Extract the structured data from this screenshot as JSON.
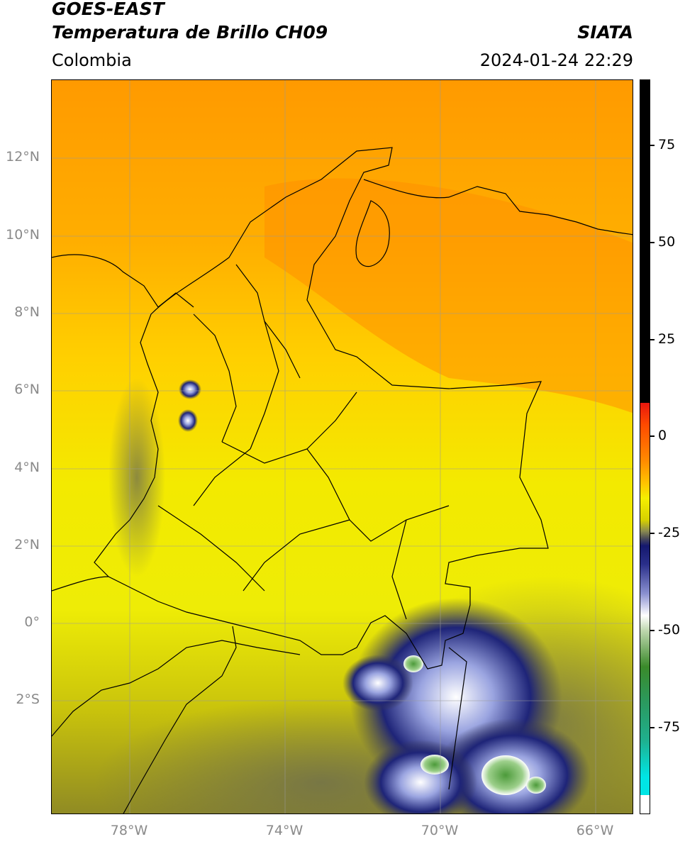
{
  "header": {
    "satellite": "GOES-EAST",
    "product": "Temperatura de Brillo CH09",
    "organization": "SIATA",
    "region": "Colombia",
    "datetime": "2024-01-24 22:29"
  },
  "map": {
    "lat_ticks": [
      "12°N",
      "10°N",
      "8°N",
      "6°N",
      "4°N",
      "2°N",
      "0°",
      "2°S"
    ],
    "lon_ticks": [
      "78°W",
      "74°W",
      "70°W",
      "66°W"
    ]
  },
  "colorbar": {
    "ticks": [
      "75",
      "50",
      "25",
      "0",
      "-25",
      "-50",
      "-75"
    ],
    "colors": {
      "black": "#000000",
      "red": "#e8170e",
      "orange": "#ff8c00",
      "yellow": "#f5ef00",
      "olive": "#6a6a3a",
      "navy": "#14186e",
      "white": "#ffffff",
      "green": "#3a8a2a",
      "teal": "#1fb08e",
      "cyan": "#00e5e5"
    }
  }
}
